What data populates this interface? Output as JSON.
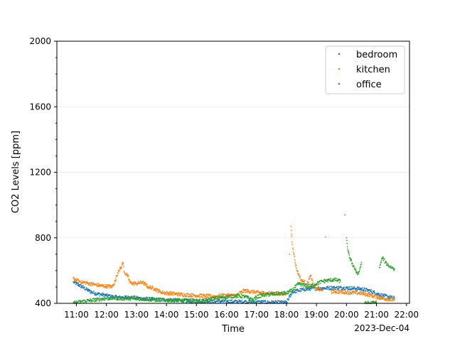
{
  "chart_data": {
    "type": "scatter",
    "title": "",
    "xlabel": "Time",
    "ylabel": "CO2 Levels [ppm]",
    "x_offset_label": "2023-Dec-04",
    "x_unit": "hours of day",
    "xlim": [
      10.35,
      22.1
    ],
    "ylim": [
      400,
      2000
    ],
    "x_ticks": [
      11,
      12,
      13,
      14,
      15,
      16,
      17,
      18,
      19,
      20,
      21,
      22
    ],
    "x_tick_labels": [
      "11:00",
      "12:00",
      "13:00",
      "14:00",
      "15:00",
      "16:00",
      "17:00",
      "18:00",
      "19:00",
      "20:00",
      "21:00",
      "22:00"
    ],
    "y_ticks": [
      400,
      800,
      1200,
      1600,
      2000
    ],
    "y_tick_labels": [
      "400",
      "800",
      "1200",
      "1600",
      "2000"
    ],
    "grid": "y",
    "legend_position": "top-right",
    "series": [
      {
        "name": "bedroom",
        "color": "#1f77b4",
        "points": [
          [
            10.9,
            530
          ],
          [
            11.0,
            520
          ],
          [
            11.1,
            510
          ],
          [
            11.25,
            495
          ],
          [
            11.4,
            478
          ],
          [
            11.6,
            462
          ],
          [
            11.8,
            455
          ],
          [
            12.0,
            448
          ],
          [
            12.2,
            440
          ],
          [
            12.5,
            435
          ],
          [
            12.8,
            438
          ],
          [
            13.0,
            432
          ],
          [
            13.3,
            428
          ],
          [
            13.6,
            424
          ],
          [
            14.0,
            420
          ],
          [
            14.5,
            418
          ],
          [
            15.0,
            415
          ],
          [
            15.5,
            413
          ],
          [
            16.0,
            412
          ],
          [
            16.5,
            410
          ],
          [
            17.0,
            408
          ],
          [
            17.5,
            406
          ],
          [
            18.0,
            405
          ],
          [
            18.2,
            470
          ],
          [
            18.4,
            478
          ],
          [
            18.6,
            485
          ],
          [
            18.8,
            490
          ],
          [
            19.0,
            492
          ],
          [
            19.3,
            493
          ],
          [
            19.6,
            495
          ],
          [
            19.9,
            495
          ],
          [
            20.2,
            492
          ],
          [
            20.5,
            488
          ],
          [
            20.8,
            475
          ],
          [
            21.0,
            460
          ],
          [
            21.2,
            448
          ],
          [
            21.4,
            440
          ],
          [
            21.6,
            432
          ]
        ]
      },
      {
        "name": "kitchen",
        "color": "#ff7f0e",
        "points": [
          [
            10.9,
            555
          ],
          [
            11.0,
            540
          ],
          [
            11.2,
            530
          ],
          [
            11.4,
            522
          ],
          [
            11.6,
            515
          ],
          [
            11.8,
            508
          ],
          [
            12.0,
            505
          ],
          [
            12.2,
            502
          ],
          [
            12.3,
            540
          ],
          [
            12.4,
            600
          ],
          [
            12.5,
            620
          ],
          [
            12.55,
            650
          ],
          [
            12.6,
            590
          ],
          [
            12.7,
            570
          ],
          [
            12.8,
            525
          ],
          [
            13.0,
            520
          ],
          [
            13.2,
            530
          ],
          [
            13.4,
            500
          ],
          [
            13.6,
            490
          ],
          [
            13.8,
            470
          ],
          [
            14.0,
            462
          ],
          [
            14.3,
            458
          ],
          [
            14.6,
            452
          ],
          [
            15.0,
            448
          ],
          [
            15.3,
            445
          ],
          [
            15.6,
            442
          ],
          [
            16.0,
            450
          ],
          [
            16.3,
            447
          ],
          [
            16.6,
            478
          ],
          [
            16.9,
            470
          ],
          [
            17.0,
            468
          ],
          [
            17.3,
            462
          ],
          [
            17.6,
            460
          ],
          [
            18.0,
            458
          ],
          [
            18.1,
            700
          ],
          [
            18.15,
            870
          ],
          [
            18.2,
            760
          ],
          [
            18.3,
            640
          ],
          [
            18.35,
            600
          ],
          [
            18.5,
            540
          ],
          [
            18.7,
            520
          ],
          [
            18.8,
            570
          ],
          [
            18.9,
            510
          ],
          [
            19.0,
            490
          ],
          [
            19.2,
            480
          ],
          [
            19.3,
            805
          ],
          [
            19.5,
            475
          ],
          [
            19.8,
            470
          ],
          [
            20.0,
            468
          ],
          [
            20.3,
            465
          ],
          [
            20.5,
            462
          ],
          [
            20.8,
            450
          ],
          [
            21.0,
            440
          ],
          [
            21.2,
            430
          ],
          [
            21.4,
            425
          ],
          [
            21.6,
            420
          ]
        ]
      },
      {
        "name": "office",
        "color": "#2ca02c",
        "points": [
          [
            10.9,
            402
          ],
          [
            11.2,
            412
          ],
          [
            11.5,
            418
          ],
          [
            11.8,
            425
          ],
          [
            12.0,
            430
          ],
          [
            12.3,
            432
          ],
          [
            12.6,
            430
          ],
          [
            13.0,
            428
          ],
          [
            13.3,
            425
          ],
          [
            13.6,
            422
          ],
          [
            14.0,
            420
          ],
          [
            14.3,
            418
          ],
          [
            14.6,
            416
          ],
          [
            15.0,
            415
          ],
          [
            15.3,
            418
          ],
          [
            15.6,
            430
          ],
          [
            16.0,
            440
          ],
          [
            16.3,
            445
          ],
          [
            16.6,
            442
          ],
          [
            16.9,
            420
          ],
          [
            17.0,
            438
          ],
          [
            17.2,
            450
          ],
          [
            17.5,
            455
          ],
          [
            17.8,
            460
          ],
          [
            18.0,
            462
          ],
          [
            18.2,
            480
          ],
          [
            18.4,
            520
          ],
          [
            18.6,
            510
          ],
          [
            18.8,
            505
          ],
          [
            19.0,
            520
          ],
          [
            19.2,
            535
          ],
          [
            19.4,
            540
          ],
          [
            19.6,
            545
          ],
          [
            19.8,
            535
          ],
          [
            19.95,
            940
          ],
          [
            20.0,
            800
          ],
          [
            20.05,
            720
          ],
          [
            20.1,
            680
          ],
          [
            20.2,
            640
          ],
          [
            20.3,
            600
          ],
          [
            20.4,
            580
          ],
          [
            20.5,
            650
          ],
          [
            20.6,
            400
          ],
          [
            20.8,
            402
          ],
          [
            21.0,
            405
          ],
          [
            21.1,
            620
          ],
          [
            21.2,
            680
          ],
          [
            21.3,
            650
          ],
          [
            21.4,
            630
          ],
          [
            21.5,
            620
          ],
          [
            21.6,
            610
          ]
        ]
      }
    ]
  }
}
